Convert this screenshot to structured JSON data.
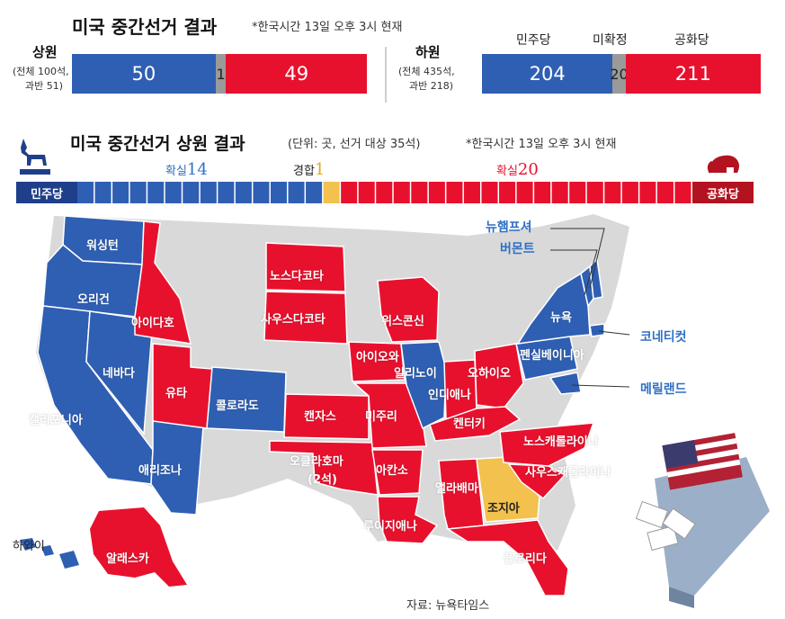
{
  "header": {
    "title": "미국 중간선거 결과",
    "note": "*한국시간 13일 오후 3시 현재"
  },
  "senate": {
    "label": "상원",
    "sub1": "(전체 100석,",
    "sub2": "과반 51)"
  },
  "house": {
    "label": "하원",
    "sub1": "(전체 435석,",
    "sub2": "과반 218)",
    "legend_dem": "민주당",
    "legend_und": "미확정",
    "legend_rep": "공화당"
  },
  "subheader": {
    "title": "미국 중간선거 상원 결과",
    "unit": "(단위: 곳, 선거 대상 35석)",
    "note": "*한국시간 13일 오후 3시 현재"
  },
  "race_bar": {
    "dem_label": "민주당",
    "rep_label": "공화당",
    "dem_count_label": "확실",
    "dem_count": "14",
    "tossup_label": "경합",
    "tossup_count": "1",
    "rep_count_label": "확실",
    "rep_count": "20"
  },
  "states": {
    "washington": "워싱턴",
    "oregon": "오리건",
    "california": "캘리포니아",
    "nevada": "네바다",
    "arizona": "애리조나",
    "idaho": "아이다호",
    "utah": "유타",
    "colorado": "콜로라도",
    "north_dakota": "노스다코타",
    "south_dakota": "사우스다코타",
    "kansas": "캔자스",
    "oklahoma": "오클라호마",
    "oklahoma_note": "(2석)",
    "wisconsin": "위스콘신",
    "iowa": "아이오와",
    "illinois": "일리노이",
    "missouri": "미주리",
    "arkansas": "아칸소",
    "louisiana": "루이지애나",
    "indiana": "인디애나",
    "ohio": "오하이오",
    "kentucky": "켄터키",
    "alabama": "앨라배마",
    "georgia": "조지아",
    "florida": "플로리다",
    "north_carolina": "노스캐롤라이나",
    "south_carolina": "사우스캐롤라이나",
    "new_york": "뉴욕",
    "pennsylvania": "펜실베이니아",
    "new_hampshire": "뉴햄프셔",
    "vermont": "버몬트",
    "connecticut": "코네티컷",
    "maryland": "메릴랜드",
    "hawaii": "하와이",
    "alaska": "알래스카"
  },
  "source": "자료: 뉴욕타임스",
  "colors": {
    "dem": "#2f5fb3",
    "rep": "#e8112d",
    "undecided": "#9a9a9a",
    "tossup": "#f2c14e",
    "neutral": "#d9d9d9"
  },
  "chart_data": [
    {
      "type": "bar",
      "title": "상원",
      "categories": [
        "민주당",
        "미확정",
        "공화당"
      ],
      "values": [
        50,
        1,
        49
      ]
    },
    {
      "type": "bar",
      "title": "하원",
      "categories": [
        "민주당",
        "미확정",
        "공화당"
      ],
      "values": [
        204,
        20,
        211
      ]
    },
    {
      "type": "bar",
      "title": "미국 중간선거 상원 결과",
      "categories": [
        "민주당 확실",
        "경합",
        "공화당 확실"
      ],
      "values": [
        14,
        1,
        20
      ]
    }
  ]
}
